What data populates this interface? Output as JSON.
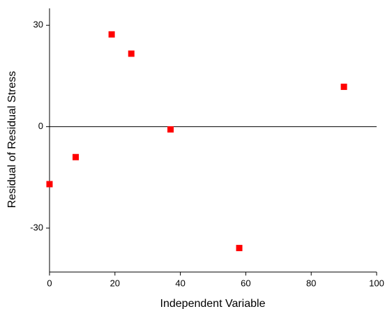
{
  "chart_data": {
    "type": "scatter",
    "xlabel": "Independent Variable",
    "ylabel": "Residual of Residual Stress",
    "series": [
      {
        "color": "#ff0000",
        "x": [
          0,
          8,
          19,
          25,
          37,
          58,
          90
        ],
        "values": [
          -17,
          -9,
          27.3,
          21.6,
          -0.8,
          -35.9,
          11.8
        ]
      }
    ],
    "xlim": [
      0,
      100
    ],
    "xticks": [
      0,
      20,
      40,
      60,
      80,
      100
    ],
    "ylim": [
      -43,
      35
    ],
    "yticks": [
      -30,
      0,
      30
    ],
    "hline": 0
  }
}
